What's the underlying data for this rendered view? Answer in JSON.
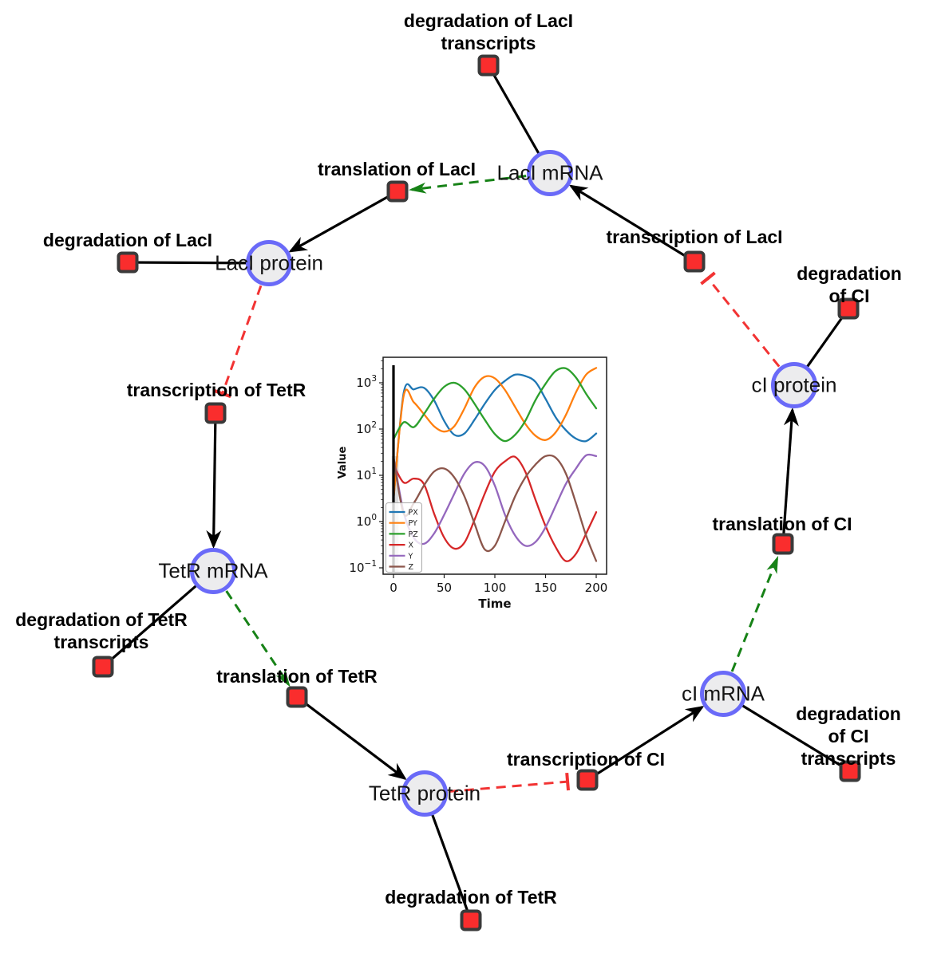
{
  "diagram": {
    "species": [
      {
        "label": "LacI mRNA"
      },
      {
        "label": "LacI protein"
      },
      {
        "label": "TetR mRNA"
      },
      {
        "label": "TetR protein"
      },
      {
        "label": "cI mRNA"
      },
      {
        "label": "cI protein"
      }
    ],
    "reactions": [
      {
        "label": "degradation of LacI\ntranscripts"
      },
      {
        "label": "translation of LacI"
      },
      {
        "label": "transcription of LacI"
      },
      {
        "label": "degradation of LacI"
      },
      {
        "label": "transcription of TetR"
      },
      {
        "label": "degradation of CI"
      },
      {
        "label": "translation of CI"
      },
      {
        "label": "degradation of TetR\ntranscripts"
      },
      {
        "label": "translation of TetR"
      },
      {
        "label": "transcription of CI"
      },
      {
        "label": "degradation of CI\ntranscripts"
      },
      {
        "label": "degradation of TetR"
      }
    ],
    "colors": {
      "species_fill": "#ececee",
      "species_border": "#6a6af8",
      "reaction_fill": "#fa2d2d",
      "reaction_border": "#3a3a3a",
      "edge_black": "#000000",
      "edge_activation_green": "#178217",
      "edge_inhibition_red": "#f23333"
    }
  },
  "chart_data": {
    "type": "line",
    "title": "",
    "xlabel": "Time",
    "ylabel": "Value",
    "y_scale": "log",
    "xlim": [
      -10,
      210
    ],
    "ylim": [
      0.072,
      3548
    ],
    "x_ticks": [
      0,
      50,
      100,
      150,
      200
    ],
    "y_tick_exponents": [
      3,
      2,
      1,
      0,
      -1
    ],
    "legend_position": "lower left",
    "vline_x": 0,
    "grid": false,
    "x": [
      0,
      10,
      20,
      30,
      40,
      50,
      60,
      70,
      80,
      90,
      100,
      110,
      120,
      130,
      140,
      150,
      160,
      170,
      180,
      190,
      200
    ],
    "series": [
      {
        "name": "PX",
        "color": "#1f77b4",
        "values": [
          3,
          600,
          720,
          780,
          420,
          150,
          75,
          80,
          160,
          350,
          700,
          1100,
          1500,
          1400,
          1050,
          450,
          180,
          95,
          62,
          55,
          80
        ]
      },
      {
        "name": "PY",
        "color": "#ff7f0e",
        "values": [
          3,
          520,
          380,
          210,
          115,
          88,
          115,
          280,
          800,
          1350,
          1250,
          700,
          300,
          130,
          72,
          58,
          85,
          200,
          620,
          1500,
          2100
        ]
      },
      {
        "name": "PZ",
        "color": "#2ca02c",
        "values": [
          60,
          140,
          110,
          210,
          450,
          820,
          1000,
          720,
          350,
          160,
          78,
          55,
          75,
          150,
          420,
          950,
          1800,
          2050,
          1300,
          580,
          280
        ]
      },
      {
        "name": "X",
        "color": "#d62728",
        "values": [
          17,
          7,
          8.5,
          6.5,
          1.5,
          0.45,
          0.26,
          0.35,
          1.1,
          4,
          12,
          20,
          25,
          12,
          3,
          0.8,
          0.28,
          0.14,
          0.2,
          0.55,
          1.6
        ]
      },
      {
        "name": "Y",
        "color": "#9467bd",
        "values": [
          25,
          1.6,
          0.45,
          0.33,
          0.55,
          1.4,
          4,
          11,
          19,
          16,
          6,
          1.4,
          0.5,
          0.3,
          0.36,
          0.75,
          2.2,
          6.5,
          14,
          27,
          26
        ]
      },
      {
        "name": "Z",
        "color": "#8c564b",
        "values": [
          25,
          1.5,
          2.5,
          6,
          12,
          14,
          9,
          3.5,
          0.9,
          0.25,
          0.3,
          1,
          3.5,
          9,
          17,
          26,
          24,
          11,
          2.5,
          0.5,
          0.14
        ]
      }
    ]
  }
}
